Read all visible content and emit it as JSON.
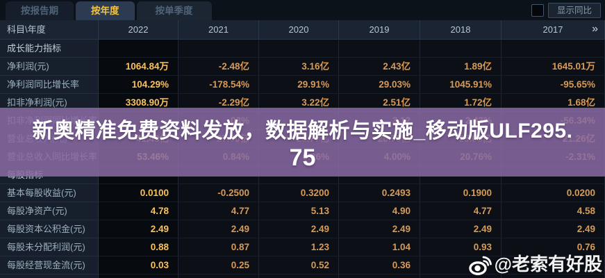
{
  "tabs": [
    {
      "label": "按报告期",
      "active": false
    },
    {
      "label": "按年度",
      "active": true
    },
    {
      "label": "按单季度",
      "active": false
    }
  ],
  "toolbar": {
    "yoy_label": "显示同比",
    "yoy_checked": false
  },
  "table": {
    "corner_label": "科目\\年度",
    "years": [
      "2022",
      "2021",
      "2020",
      "2019",
      "2018",
      "2017"
    ],
    "more_label": "»",
    "rows": [
      {
        "type": "section",
        "label": "成长能力指标"
      },
      {
        "type": "data",
        "label": "净利润(元)",
        "values": [
          "1064.84万",
          "-2.48亿",
          "3.16亿",
          "2.43亿",
          "1.89亿",
          "1645.01万"
        ]
      },
      {
        "type": "data",
        "label": "净利润同比增长率",
        "values": [
          "104.29%",
          "-178.54%",
          "29.91%",
          "29.03%",
          "1045.91%",
          "-95.65%"
        ]
      },
      {
        "type": "data",
        "label": "扣非净利润(元)",
        "values": [
          "3308.90万",
          "-2.29亿",
          "3.22亿",
          "2.51亿",
          "1.72亿",
          "1.68亿"
        ]
      },
      {
        "type": "data",
        "label": "扣非净利润同比增长率",
        "values": [
          "",
          "03%",
          "",
          "3.12",
          "2.43%",
          "-56.34%"
        ]
      },
      {
        "type": "data",
        "label": "营业总收入(元)",
        "values": [
          "41.43亿",
          "27.00亿",
          "26.77亿",
          "26.70亿",
          "25.68亿",
          "21.26亿"
        ]
      },
      {
        "type": "data",
        "label": "营业总收入同比增长率",
        "values": [
          "53.46%",
          "0.84%",
          "0.26%",
          "4.00%",
          "20.76%",
          "-2.31%"
        ]
      },
      {
        "type": "section",
        "label": "每股指标"
      },
      {
        "type": "data",
        "label": "基本每股收益(元)",
        "values": [
          "0.0100",
          "-0.2500",
          "0.3200",
          "0.2493",
          "0.1900",
          "0.0200"
        ]
      },
      {
        "type": "data",
        "label": "每股净资产(元)",
        "values": [
          "4.78",
          "4.77",
          "5.13",
          "4.90",
          "4.77",
          "4.58"
        ]
      },
      {
        "type": "data",
        "label": "每股资本公积金(元)",
        "values": [
          "2.49",
          "2.49",
          "2.49",
          "2.49",
          "2.49",
          "2.49"
        ]
      },
      {
        "type": "data",
        "label": "每股未分配利润(元)",
        "values": [
          "0.88",
          "0.87",
          "1.23",
          "1.04",
          "0.93",
          "0.76"
        ]
      },
      {
        "type": "data",
        "label": "每股经营现金流(元)",
        "values": [
          "0.03",
          "0.25",
          "0.52",
          "0.36",
          "",
          ""
        ]
      }
    ]
  },
  "overlay": {
    "line1": "新奥精准免费资料发放，数据解析与实施_移动版ULF295.",
    "line2": "75",
    "full_text": "新奥精准免费资料发放，数据解析与实施_移动版ULF295.75"
  },
  "watermark": {
    "handle": "@老索有好股",
    "icon": "weibo-icon"
  },
  "colors": {
    "value_text": "#d89a54",
    "value_text_2022": "#fdc257",
    "tab_active_text": "#f2c33e",
    "overlay_bg": "#8b6ba5",
    "header_bg": "#1b2433",
    "label_col_bg": "#161f2b",
    "data_cell_bg": "#0c1016"
  }
}
